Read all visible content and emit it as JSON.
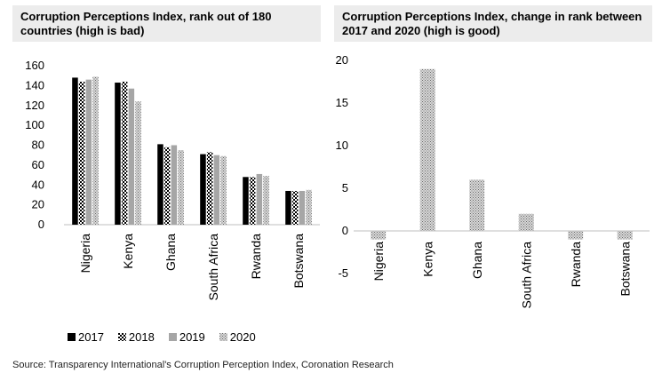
{
  "chart_data": [
    {
      "type": "bar",
      "title_lines": [
        "Corruption Perceptions Index, rank out of 180",
        "countries (high is bad)"
      ],
      "categories": [
        "Nigeria",
        "Kenya",
        "Ghana",
        "South Africa",
        "Rwanda",
        "Botswana"
      ],
      "series": [
        {
          "name": "2017",
          "values": [
            148,
            143,
            81,
            71,
            48,
            34
          ]
        },
        {
          "name": "2018",
          "values": [
            144,
            144,
            78,
            73,
            48,
            34
          ]
        },
        {
          "name": "2019",
          "values": [
            146,
            137,
            80,
            70,
            51,
            34
          ]
        },
        {
          "name": "2020",
          "values": [
            149,
            124,
            75,
            69,
            49,
            35
          ]
        }
      ],
      "ylim": [
        0,
        160
      ],
      "yticks": [
        0,
        20,
        40,
        60,
        80,
        100,
        120,
        140,
        160
      ],
      "legend_position": "bottom",
      "grid": false
    },
    {
      "type": "bar",
      "title_lines": [
        "Corruption Perceptions Index, change in rank between",
        "2017 and 2020 (high is good)"
      ],
      "categories": [
        "Nigeria",
        "Kenya",
        "Ghana",
        "South Africa",
        "Rwanda",
        "Botswana"
      ],
      "values": [
        -1,
        19,
        6,
        2,
        -1,
        -1
      ],
      "ylim": [
        -5,
        20
      ],
      "yticks": [
        -5,
        0,
        5,
        10,
        15,
        20
      ],
      "grid": false
    }
  ],
  "source": "Source: Transparency International's Corruption Perception Index, Coronation Research"
}
